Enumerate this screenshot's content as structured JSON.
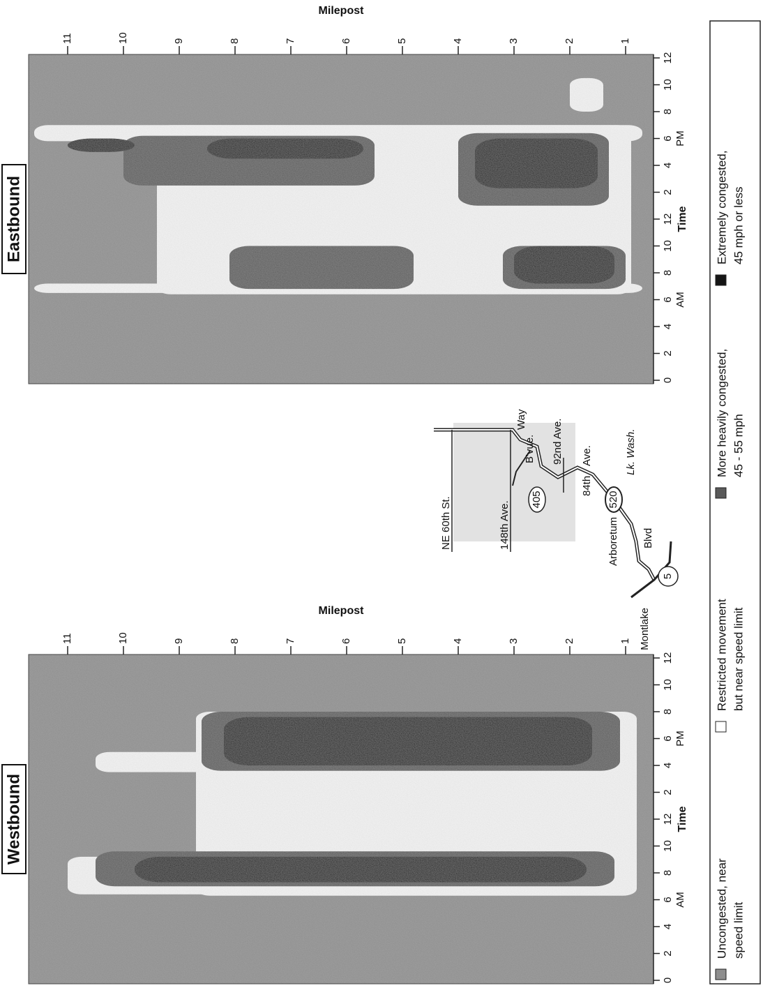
{
  "chart_data": [
    {
      "type": "heatmap",
      "title": "Westbound",
      "xlabel": "Time",
      "ylabel": "Milepost",
      "period_labels": [
        "AM",
        "PM"
      ],
      "xlim": [
        0,
        24
      ],
      "ylim": [
        0.5,
        11.7
      ],
      "xticks": [
        0,
        2,
        4,
        6,
        8,
        10,
        12,
        {
          "value": 14,
          "label": "2"
        },
        {
          "value": 16,
          "label": "4"
        },
        {
          "value": 18,
          "label": "6"
        },
        {
          "value": 20,
          "label": "8"
        },
        {
          "value": 22,
          "label": "10"
        },
        {
          "value": 24,
          "label": "12"
        }
      ],
      "yticks": [
        1,
        2,
        3,
        4,
        5,
        6,
        7,
        8,
        9,
        10,
        11
      ]
    },
    {
      "type": "heatmap",
      "title": "Eastbound",
      "xlabel": "Time",
      "ylabel": "Milepost",
      "period_labels": [
        "AM",
        "PM"
      ],
      "xlim": [
        0,
        24
      ],
      "ylim": [
        0.5,
        11.7
      ],
      "xticks": [
        0,
        2,
        4,
        6,
        8,
        10,
        12,
        {
          "value": 14,
          "label": "2"
        },
        {
          "value": 16,
          "label": "4"
        },
        {
          "value": 18,
          "label": "6"
        },
        {
          "value": 20,
          "label": "8"
        },
        {
          "value": 22,
          "label": "10"
        },
        {
          "value": 24,
          "label": "12"
        }
      ],
      "yticks": [
        1,
        2,
        3,
        4,
        5,
        6,
        7,
        8,
        9,
        10,
        11
      ]
    }
  ],
  "map": {
    "labels": [
      "NE 60th St.",
      "148th Ave.",
      "405",
      "B'vue.",
      "Way",
      "92nd Ave.",
      "84th",
      "Ave.",
      "520",
      "Lk. Wash.",
      "Arboretum",
      "Blvd",
      "Montlake",
      "5"
    ]
  },
  "legend": [
    {
      "lines": [
        "Uncongested, near",
        "speed limit"
      ],
      "color": "#8e8e8e"
    },
    {
      "lines": [
        "Restricted movement",
        "but near speed limit"
      ],
      "color": "#ffffff"
    },
    {
      "lines": [
        "More heavily congested,",
        "45 - 55 mph"
      ],
      "color": "#5a5a5a"
    },
    {
      "lines": [
        "Extremely congested,",
        "45 mph or less"
      ],
      "color": "#151515"
    }
  ]
}
